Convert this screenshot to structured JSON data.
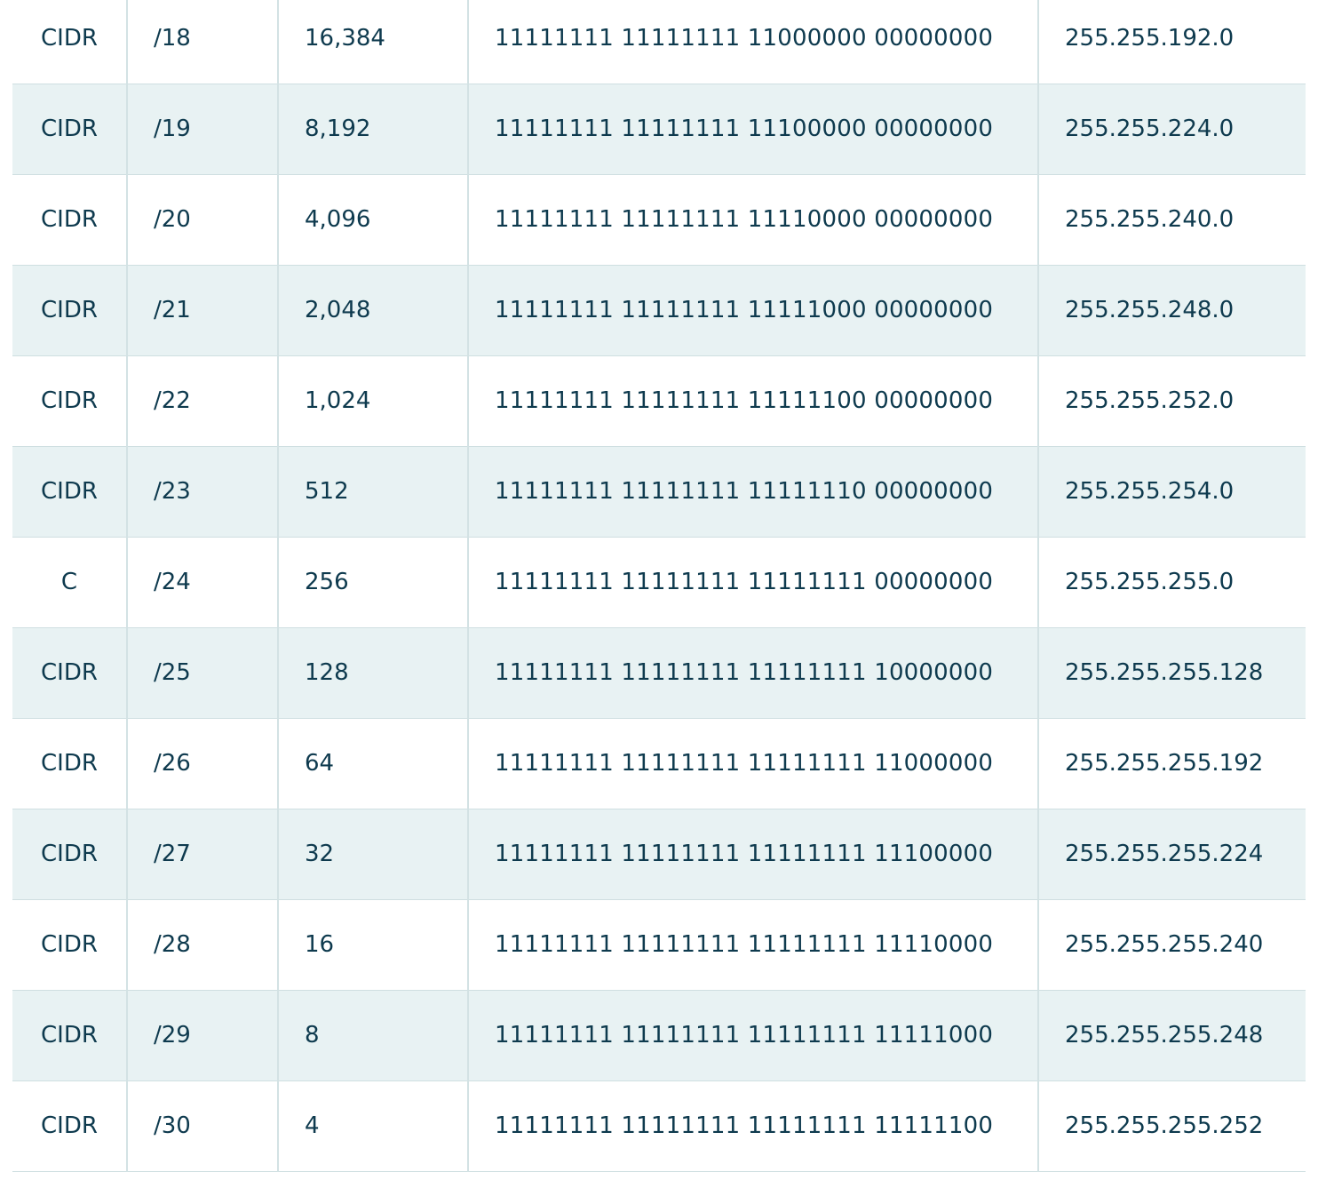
{
  "table": {
    "rows": [
      {
        "type": "CIDR",
        "prefix": "/18",
        "hosts": "16,384",
        "binary": "11111111 11111111 11000000 00000000",
        "mask": "255.255.192.0"
      },
      {
        "type": "CIDR",
        "prefix": "/19",
        "hosts": "8,192",
        "binary": "11111111 11111111 11100000 00000000",
        "mask": "255.255.224.0"
      },
      {
        "type": "CIDR",
        "prefix": "/20",
        "hosts": "4,096",
        "binary": "11111111 11111111 11110000 00000000",
        "mask": "255.255.240.0"
      },
      {
        "type": "CIDR",
        "prefix": "/21",
        "hosts": "2,048",
        "binary": "11111111 11111111 11111000 00000000",
        "mask": "255.255.248.0"
      },
      {
        "type": "CIDR",
        "prefix": "/22",
        "hosts": "1,024",
        "binary": "11111111 11111111 11111100 00000000",
        "mask": "255.255.252.0"
      },
      {
        "type": "CIDR",
        "prefix": "/23",
        "hosts": "512",
        "binary": "11111111 11111111 11111110 00000000",
        "mask": "255.255.254.0"
      },
      {
        "type": "C",
        "prefix": "/24",
        "hosts": "256",
        "binary": "11111111 11111111 11111111 00000000",
        "mask": "255.255.255.0"
      },
      {
        "type": "CIDR",
        "prefix": "/25",
        "hosts": "128",
        "binary": "11111111 11111111 11111111 10000000",
        "mask": "255.255.255.128"
      },
      {
        "type": "CIDR",
        "prefix": "/26",
        "hosts": "64",
        "binary": "11111111 11111111 11111111 11000000",
        "mask": "255.255.255.192"
      },
      {
        "type": "CIDR",
        "prefix": "/27",
        "hosts": "32",
        "binary": "11111111 11111111 11111111 11100000",
        "mask": "255.255.255.224"
      },
      {
        "type": "CIDR",
        "prefix": "/28",
        "hosts": "16",
        "binary": "11111111 11111111 11111111 11110000",
        "mask": "255.255.255.240"
      },
      {
        "type": "CIDR",
        "prefix": "/29",
        "hosts": "8",
        "binary": "11111111 11111111 11111111 11111000",
        "mask": "255.255.255.248"
      },
      {
        "type": "CIDR",
        "prefix": "/30",
        "hosts": "4",
        "binary": "11111111 11111111 11111111 11111100",
        "mask": "255.255.255.252"
      }
    ]
  },
  "colors": {
    "text": "#0e3a4e",
    "stripe": "#e8f2f3",
    "border": "#d3e2e4"
  }
}
